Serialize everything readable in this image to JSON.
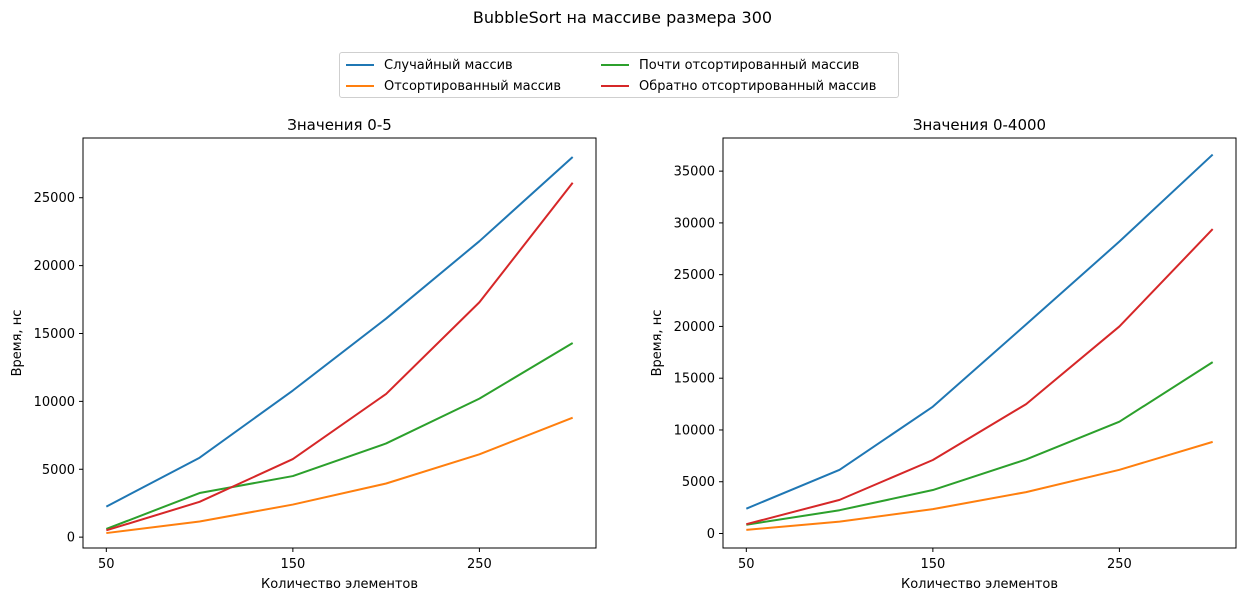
{
  "figure": {
    "suptitle": "BubbleSort на массиве размера 300"
  },
  "legend": {
    "placement": "top-center",
    "entries": [
      {
        "label": "Случайный массив",
        "color": "#1f77b4"
      },
      {
        "label": "Отсортированный массив",
        "color": "#ff7f0e"
      },
      {
        "label": "Почти отсортированный массив",
        "color": "#2ca02c"
      },
      {
        "label": "Обратно отсортированный массив",
        "color": "#d62728"
      }
    ]
  },
  "chart_data": [
    {
      "type": "line",
      "title": "Значения 0-5",
      "xlabel": "Количество элементов",
      "ylabel": "Время, нс",
      "x": [
        50,
        100,
        150,
        200,
        250,
        300
      ],
      "xticks": [
        50,
        150,
        250
      ],
      "xlim": [
        37.5,
        312.5
      ],
      "yticks": [
        0,
        5000,
        10000,
        15000,
        20000,
        25000
      ],
      "ylim": [
        -800,
        29400
      ],
      "grid": false,
      "series": [
        {
          "name": "Случайный массив",
          "color": "#1f77b4",
          "values": [
            2250,
            5850,
            10800,
            16100,
            21800,
            28000
          ]
        },
        {
          "name": "Отсортированный массив",
          "color": "#ff7f0e",
          "values": [
            300,
            1150,
            2400,
            3950,
            6100,
            8800
          ]
        },
        {
          "name": "Почти отсортированный массив",
          "color": "#2ca02c",
          "values": [
            600,
            3250,
            4500,
            6900,
            10200,
            14300
          ]
        },
        {
          "name": "Обратно отсортированный массив",
          "color": "#d62728",
          "values": [
            500,
            2600,
            5750,
            10550,
            17300,
            26100
          ]
        }
      ]
    },
    {
      "type": "line",
      "title": "Значения 0-4000",
      "xlabel": "Количество элементов",
      "ylabel": "Время, нс",
      "x": [
        50,
        100,
        150,
        200,
        250,
        300
      ],
      "xticks": [
        50,
        150,
        250
      ],
      "xlim": [
        37.5,
        312.5
      ],
      "yticks": [
        0,
        5000,
        10000,
        15000,
        20000,
        25000,
        30000,
        35000
      ],
      "ylim": [
        -1400,
        38200
      ],
      "grid": false,
      "series": [
        {
          "name": "Случайный массив",
          "color": "#1f77b4",
          "values": [
            2400,
            6150,
            12250,
            20200,
            28200,
            36600
          ]
        },
        {
          "name": "Отсортированный массив",
          "color": "#ff7f0e",
          "values": [
            350,
            1150,
            2350,
            4000,
            6150,
            8850
          ]
        },
        {
          "name": "Почти отсортированный массив",
          "color": "#2ca02c",
          "values": [
            850,
            2250,
            4200,
            7150,
            10800,
            16550
          ]
        },
        {
          "name": "Обратно отсортированный массив",
          "color": "#d62728",
          "values": [
            900,
            3250,
            7100,
            12500,
            20000,
            29400
          ]
        }
      ]
    }
  ]
}
